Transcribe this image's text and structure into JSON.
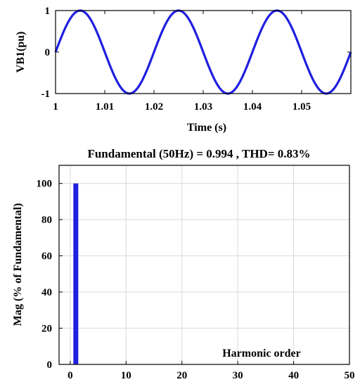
{
  "chart_data": [
    {
      "type": "line",
      "title": "",
      "xlabel": "Time (s)",
      "ylabel": "VB1(pu)",
      "xlim": [
        1.0,
        1.06
      ],
      "ylim": [
        -1,
        1
      ],
      "xticks": [
        "1",
        "1.01",
        "1.02",
        "1.03",
        "1.04",
        "1.05"
      ],
      "xtick_values": [
        1.0,
        1.01,
        1.02,
        1.03,
        1.04,
        1.05
      ],
      "yticks": [
        "-1",
        "0",
        "1"
      ],
      "ytick_values": [
        -1,
        0,
        1
      ],
      "grid": false,
      "color": "#1f1fe0",
      "series": [
        {
          "x": [
            1.0,
            1.0025,
            1.005,
            1.0075,
            1.01,
            1.0125,
            1.015,
            1.0175,
            1.02,
            1.0225,
            1.025,
            1.0275,
            1.03,
            1.0325,
            1.035,
            1.0375,
            1.04,
            1.0425,
            1.045,
            1.0475,
            1.05,
            1.0525,
            1.055,
            1.0575,
            1.06
          ],
          "values": [
            -0.05,
            0.67,
            1.0,
            0.72,
            0.05,
            -0.67,
            -1.0,
            -0.72,
            -0.05,
            0.67,
            1.0,
            0.72,
            0.05,
            -0.67,
            -1.0,
            -0.72,
            -0.05,
            0.67,
            1.0,
            0.72,
            0.05,
            -0.67,
            -1.0,
            -0.72,
            -0.05
          ]
        }
      ]
    },
    {
      "type": "bar",
      "title": "Fundamental (50Hz) = 0.994 , THD= 0.83%",
      "xlabel": "Harmonic order",
      "ylabel": "Mag (% of Fundamental)",
      "xlim": [
        -2,
        50
      ],
      "ylim": [
        0,
        110
      ],
      "xticks": [
        "0",
        "10",
        "20",
        "30",
        "40",
        "50"
      ],
      "xtick_values": [
        0,
        10,
        20,
        30,
        40,
        50
      ],
      "yticks": [
        "0",
        "20",
        "40",
        "60",
        "80",
        "100"
      ],
      "ytick_values": [
        0,
        20,
        40,
        60,
        80,
        100
      ],
      "grid": true,
      "color": "#1f1fe0",
      "x": [
        1
      ],
      "values": [
        100
      ]
    }
  ]
}
